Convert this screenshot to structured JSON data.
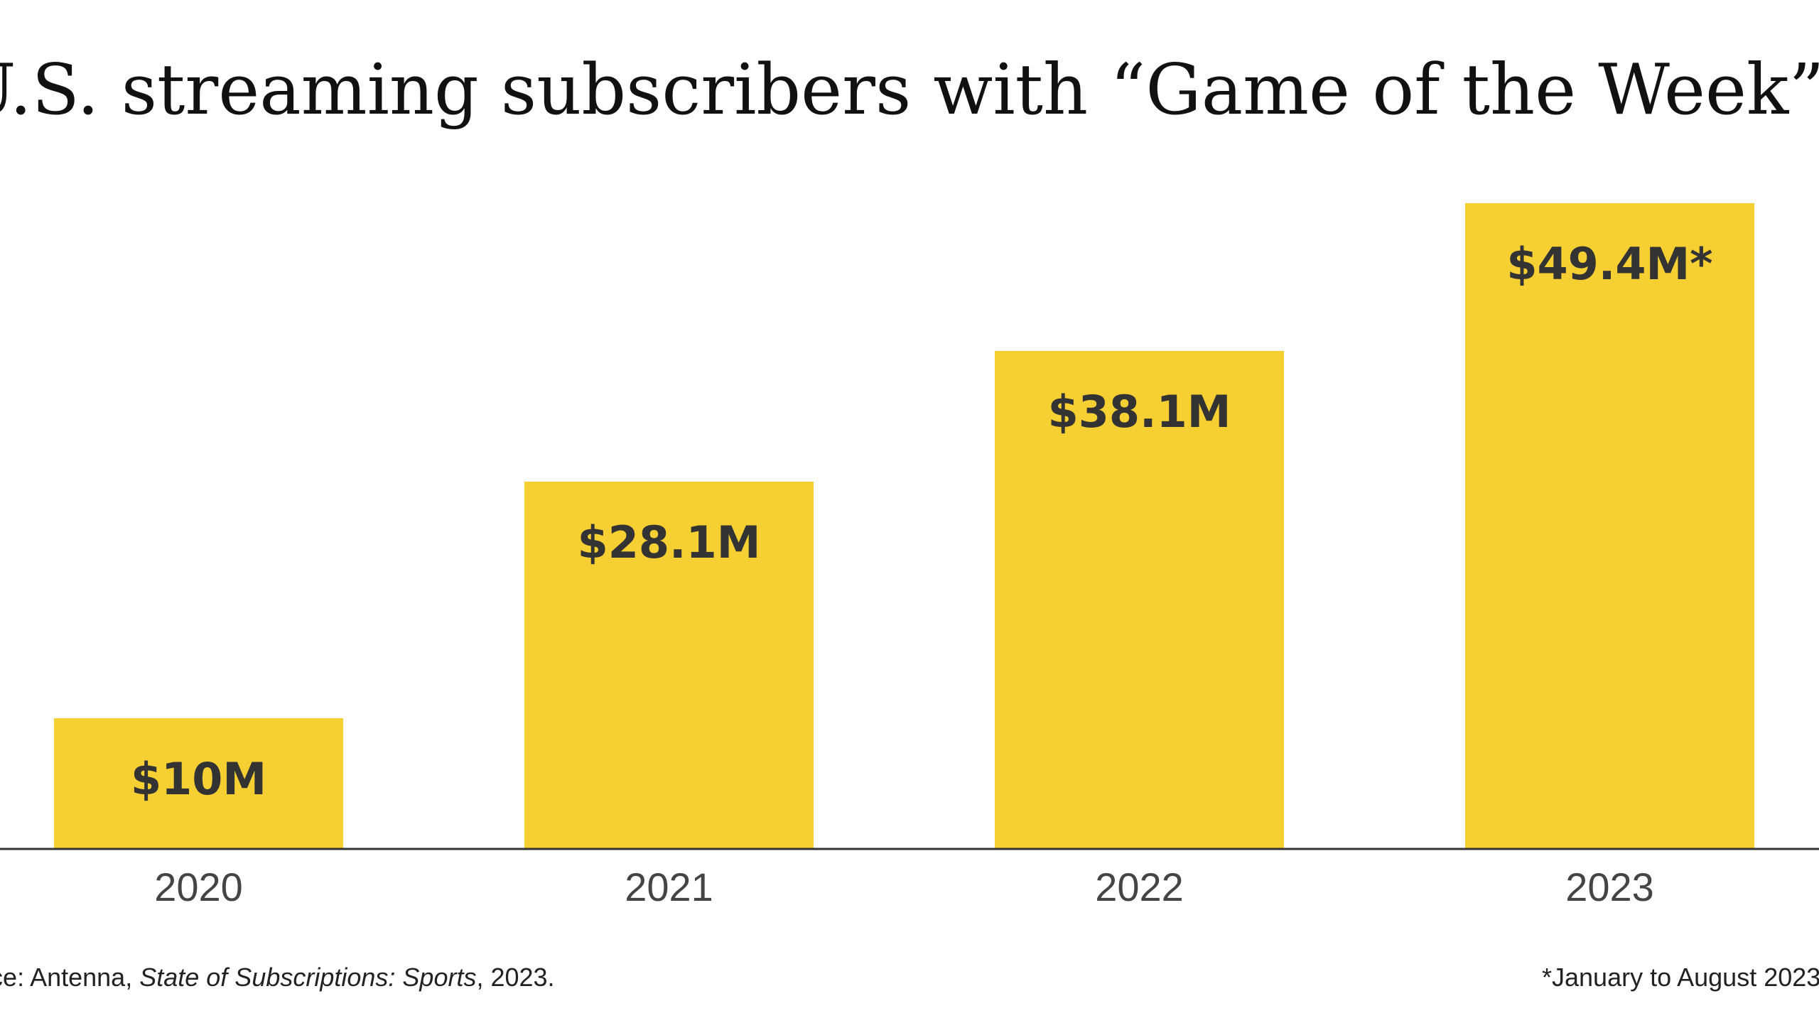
{
  "chart_data": {
    "type": "bar",
    "title": "U.S. streaming subscribers with “Game of the Week” access",
    "categories": [
      "2020",
      "2021",
      "2022",
      "2023"
    ],
    "values": [
      10,
      28.1,
      38.1,
      49.4
    ],
    "value_labels": [
      "$10M",
      "$28.1M",
      "$38.1M",
      "$49.4M*"
    ],
    "ylim": [
      0,
      50
    ],
    "grid": false,
    "legend": "none",
    "colors": {
      "bar": "#F6CF33",
      "bar_label": "#333333",
      "axis": "#333333",
      "tick": "#444444"
    }
  },
  "footer": {
    "source_prefix": "Source: Antenna, ",
    "source_title": "State of Subscriptions: Sports",
    "source_suffix": ", 2023.",
    "note": "*January to August 2023"
  }
}
